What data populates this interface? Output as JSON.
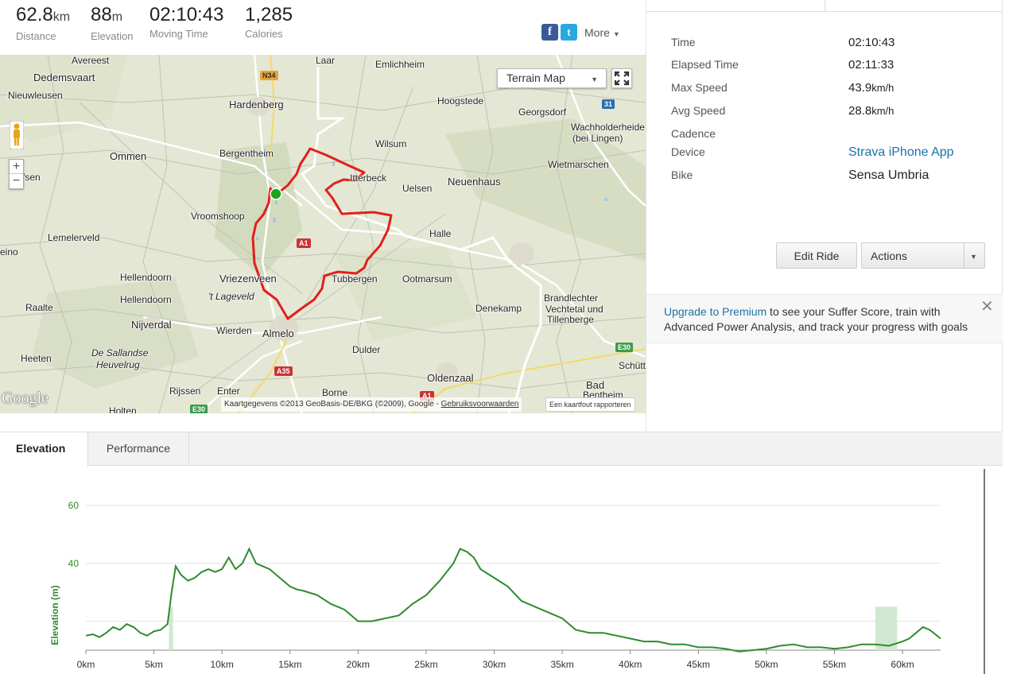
{
  "stats": [
    {
      "value": "62.8",
      "unit": "km",
      "label": "Distance"
    },
    {
      "value": "88",
      "unit": "m",
      "label": "Elevation"
    },
    {
      "value": "02:10:43",
      "unit": "",
      "label": "Moving Time"
    },
    {
      "value": "1,285",
      "unit": "",
      "label": "Calories"
    }
  ],
  "share": {
    "facebook": "f",
    "twitter": "t",
    "more_label": "More"
  },
  "map": {
    "type_select": "Terrain Map",
    "attribution": "Kaartgegevens ©2013 GeoBasis-DE/BKG (©2009), Google - ",
    "terms": "Gebruiksvoorwaarden",
    "report": "Een kaartfout rapporteren",
    "logo": "Google",
    "zoom_in": "+",
    "zoom_out": "−",
    "places": [
      {
        "name": "Avereest"
      },
      {
        "name": "Laar"
      },
      {
        "name": "Emlichheim"
      },
      {
        "name": "Dedemsvaart"
      },
      {
        "name": "Nieuwleusen"
      },
      {
        "name": "Hardenberg"
      },
      {
        "name": "Hoogstede"
      },
      {
        "name": "Georgsdorf"
      },
      {
        "name": "Wachholderheide"
      },
      {
        "name": "(bei Lingen)"
      },
      {
        "name": "Ommen"
      },
      {
        "name": "Bergentheim"
      },
      {
        "name": "Wilsum"
      },
      {
        "name": "Wietmarschen"
      },
      {
        "name": "Dalfsen"
      },
      {
        "name": "Itterbeck"
      },
      {
        "name": "Uelsen"
      },
      {
        "name": "Neuenhaus"
      },
      {
        "name": "Vroomshoop"
      },
      {
        "name": "Halle"
      },
      {
        "name": "Lemelerveld"
      },
      {
        "name": "eino"
      },
      {
        "name": "Hellendoorn"
      },
      {
        "name": "Vriezenveen"
      },
      {
        "name": "Tubbergen"
      },
      {
        "name": "Ootmarsum"
      },
      {
        "name": "Raalte"
      },
      {
        "name": "'t Lageveld"
      },
      {
        "name": "Hellendoorn"
      },
      {
        "name": "Denekamp"
      },
      {
        "name": "Brandlechter"
      },
      {
        "name": "Vechtetal und"
      },
      {
        "name": "Tillenberge"
      },
      {
        "name": "Nijverdal"
      },
      {
        "name": "Wierden"
      },
      {
        "name": "Almelo"
      },
      {
        "name": "De Sallandse"
      },
      {
        "name": "Heuvelrug"
      },
      {
        "name": "Heeten"
      },
      {
        "name": "Dulder"
      },
      {
        "name": "Oldenzaal"
      },
      {
        "name": "Schütt"
      },
      {
        "name": "Rijssen"
      },
      {
        "name": "Enter"
      },
      {
        "name": "Borne"
      },
      {
        "name": "Bad"
      },
      {
        "name": "Bentheim"
      },
      {
        "name": "Holten"
      }
    ],
    "shields": [
      "N34",
      "31",
      "E30",
      "A35",
      "A1",
      "E30",
      "A1"
    ]
  },
  "details": [
    {
      "key": "Time",
      "value": "02:10:43",
      "unit": ""
    },
    {
      "key": "Elapsed Time",
      "value": "02:11:33",
      "unit": ""
    },
    {
      "key": "Max Speed",
      "value": "43.9",
      "unit": "km/h"
    },
    {
      "key": "Avg Speed",
      "value": "28.8",
      "unit": "km/h"
    },
    {
      "key": "Cadence",
      "value": "",
      "unit": ""
    },
    {
      "key": "Device",
      "value": "Strava iPhone App",
      "unit": ""
    },
    {
      "key": "Bike",
      "value": "Sensa Umbria",
      "unit": ""
    }
  ],
  "buttons": {
    "edit_ride": "Edit Ride",
    "actions": "Actions"
  },
  "premium": {
    "link": "Upgrade to Premium",
    "text": " to see your Suffer Score, train with Advanced Power Analysis, and track your progress with goals",
    "close": "✕"
  },
  "tabs": [
    {
      "label": "Elevation"
    },
    {
      "label": "Performance"
    }
  ],
  "colors": {
    "route": "#e0201b",
    "elevation_line": "#2e8b2e",
    "link": "#1a73a8",
    "start_marker": "#1fa31f"
  },
  "chart_data": {
    "type": "line",
    "ylabel": "Elevation (m)",
    "yticks": [
      60,
      40
    ],
    "xticks": [
      "0km",
      "5km",
      "10km",
      "15km",
      "20km",
      "25km",
      "30km",
      "35km",
      "40km",
      "45km",
      "50km",
      "55km",
      "60km"
    ],
    "xlim": [
      0,
      62.8
    ],
    "ylim": [
      10,
      60
    ],
    "grid": true,
    "series": [
      {
        "x": [
          0,
          0.5,
          1,
          1.5,
          2,
          2.5,
          3,
          3.5,
          4,
          4.5,
          5,
          5.5,
          6,
          6.3,
          6.6,
          7,
          7.5,
          8,
          8.5,
          9,
          9.5,
          10,
          10.5,
          11,
          11.5,
          12,
          12.5,
          13,
          13.5,
          14,
          14.5,
          15,
          15.5,
          16,
          17,
          18,
          19,
          20,
          21,
          22,
          23,
          24,
          25,
          26,
          27,
          27.5,
          28,
          28.5,
          29,
          30,
          31,
          32,
          33,
          34,
          35,
          36,
          37,
          38,
          39,
          40,
          41,
          42,
          43,
          44,
          45,
          46,
          47,
          48,
          49,
          50,
          51,
          52,
          53,
          54,
          55,
          56,
          57,
          58,
          59,
          60,
          60.5,
          61,
          61.5,
          62,
          62.8
        ],
        "y": [
          15,
          15.5,
          14.5,
          16,
          18,
          17,
          19,
          18,
          16,
          15,
          16.5,
          17,
          19,
          30,
          39,
          36,
          34,
          35,
          37,
          38,
          37,
          38,
          42,
          38,
          40,
          45,
          40,
          39,
          38,
          36,
          34,
          32,
          31,
          30.5,
          29,
          26,
          24,
          20,
          20,
          21,
          22,
          26,
          29,
          34,
          40,
          45,
          44,
          42,
          38,
          35,
          32,
          27,
          25,
          23,
          21,
          17,
          16,
          16,
          15,
          14,
          13,
          13,
          12,
          12,
          11,
          11,
          10.5,
          9.5,
          10,
          10.5,
          11.5,
          12,
          11,
          11,
          10.5,
          11,
          12,
          12,
          11.5,
          13,
          14,
          16,
          18,
          17,
          14
        ]
      }
    ],
    "highlights": [
      [
        6.1,
        6.4
      ],
      [
        58,
        59.6
      ]
    ]
  }
}
